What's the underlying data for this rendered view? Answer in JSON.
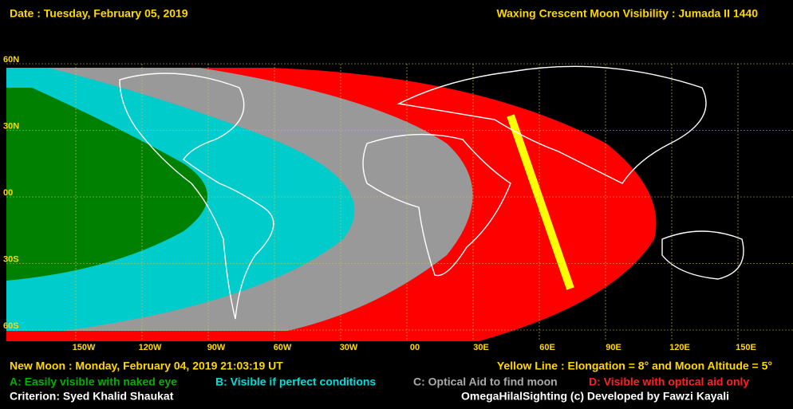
{
  "header": {
    "date": "Date : Tuesday, February 05, 2019",
    "title": "Waxing Crescent Moon Visibility : Jumada II 1440"
  },
  "map": {
    "lat_labels": [
      "60N",
      "30N",
      "00",
      "30S",
      "60S"
    ],
    "lon_labels": [
      "150W",
      "120W",
      "90W",
      "60W",
      "30W",
      "00",
      "30E",
      "60E",
      "90E",
      "120E",
      "150E"
    ]
  },
  "footer": {
    "new_moon": "New Moon : Monday, February 04, 2019  21:03:19 UT",
    "yellow_line": "Yellow Line : Elongation = 8° and Moon Altitude = 5°",
    "legend": [
      "A: Easily visible with naked eye",
      "B: Visible if perfect conditions",
      "C: Optical Aid to find moon",
      "D: Visible with optical aid only"
    ],
    "criterion": "Criterion: Syed Khalid Shaukat",
    "credit": "OmegaHilalSighting  (c)  Developed by Fawzi Kayali"
  }
}
